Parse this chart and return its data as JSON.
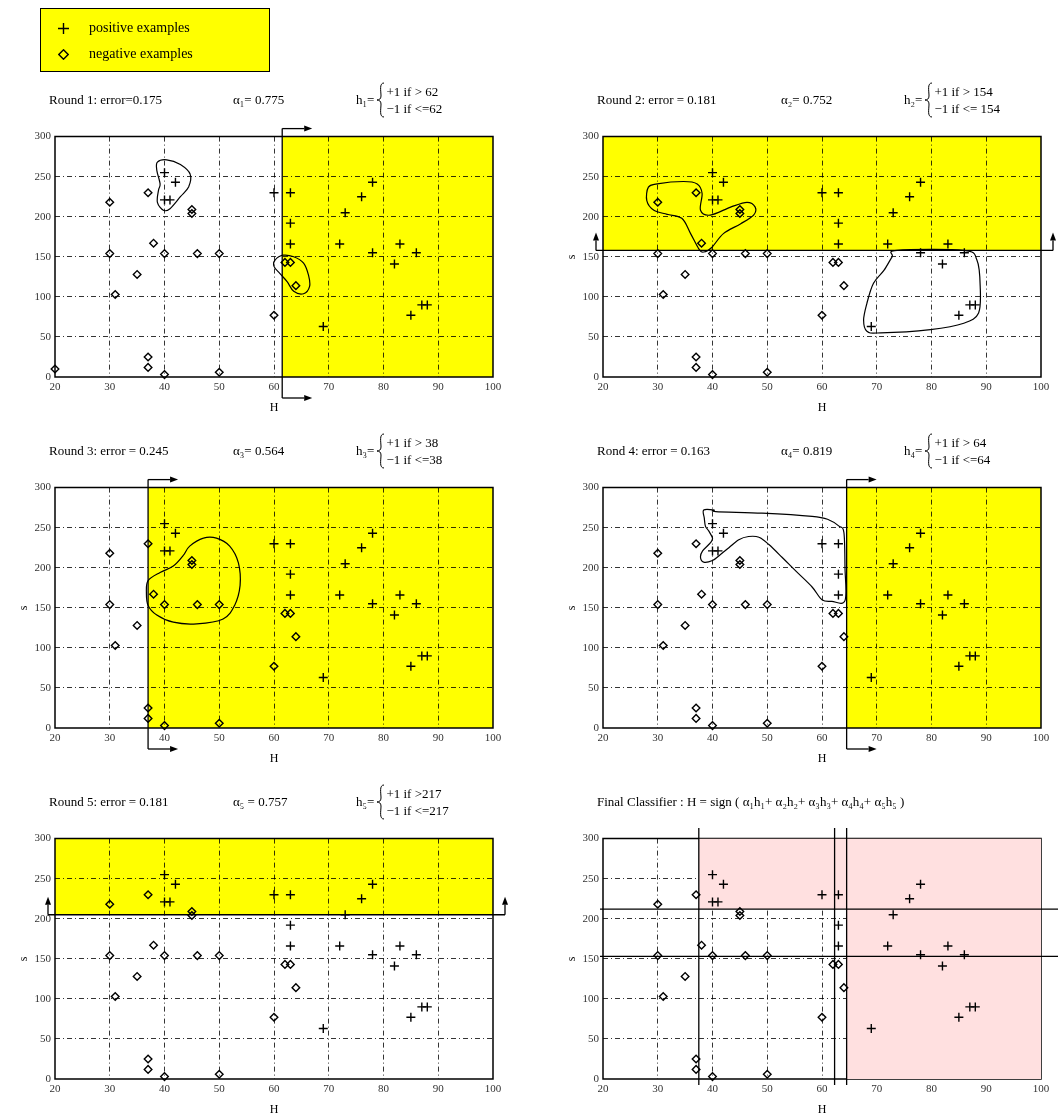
{
  "chart_data": [
    {
      "type": "scatter",
      "title": "Round 1: error=0.175",
      "xlabel": "H",
      "annotations": [
        "α₁= 0.775",
        "h₁=",
        "+1 if > 62",
        "−1 if <=62"
      ],
      "series": [
        {
          "name": "positive examples",
          "color": "#000000",
          "marker": "cross",
          "x": [
            40,
            42,
            40,
            41,
            60,
            63,
            63,
            63,
            69,
            72,
            73,
            76,
            78,
            78,
            82,
            83,
            86,
            85,
            87,
            88
          ],
          "values": [
            255,
            243,
            221,
            221,
            230,
            230,
            192,
            166,
            63,
            166,
            205,
            225,
            243,
            155,
            141,
            166,
            155,
            77,
            90,
            90
          ]
        },
        {
          "name": "negative examples",
          "color": "#000000",
          "marker": "diamond",
          "x": [
            20,
            30,
            30,
            31,
            35,
            37,
            37,
            37,
            38,
            40,
            40,
            45,
            45,
            46,
            50,
            50,
            60,
            62,
            63,
            64
          ],
          "values": [
            10,
            218,
            154,
            103,
            128,
            230,
            25,
            12,
            167,
            154,
            3,
            209,
            204,
            154,
            154,
            6,
            77,
            143,
            143,
            114
          ]
        }
      ],
      "xlim": [
        20,
        100
      ],
      "ylim": [
        0,
        300
      ],
      "xticks": [
        20,
        30,
        40,
        50,
        60,
        70,
        80,
        90,
        100
      ],
      "yticks": [
        0,
        50,
        100,
        150,
        200,
        250,
        300
      ],
      "grid": true,
      "legend": "top left",
      "bands": [
        {
          "axis": "x",
          "from": 61.5,
          "to": 100,
          "color": "#ffff00"
        }
      ],
      "ref_lines": [
        {
          "axis": "x",
          "value": 61.5,
          "color": "#000000"
        }
      ]
    },
    {
      "type": "scatter",
      "title": "Round 2: error = 0.181",
      "xlabel": "H",
      "ylabel": "s",
      "annotations": [
        "α₂= 0.752",
        "h₂=",
        "+1 if > 154",
        "−1 if <= 154"
      ],
      "series": [
        {
          "color": "#000000",
          "marker": "cross",
          "x": [
            40,
            42,
            40,
            41,
            60,
            63,
            63,
            63,
            69,
            72,
            73,
            76,
            78,
            78,
            82,
            83,
            86,
            85,
            87,
            88
          ],
          "values": [
            255,
            243,
            221,
            221,
            230,
            230,
            192,
            166,
            63,
            166,
            205,
            225,
            243,
            155,
            141,
            166,
            155,
            77,
            90,
            90
          ]
        },
        {
          "color": "#000000",
          "marker": "diamond",
          "x": [
            30,
            30,
            31,
            35,
            37,
            37,
            37,
            38,
            40,
            40,
            45,
            45,
            46,
            50,
            50,
            60,
            62,
            63,
            64
          ],
          "values": [
            218,
            154,
            103,
            128,
            230,
            25,
            12,
            167,
            154,
            3,
            209,
            204,
            154,
            154,
            6,
            77,
            143,
            143,
            114
          ]
        }
      ],
      "xlim": [
        20,
        100
      ],
      "ylim": [
        0,
        300
      ],
      "xticks": [
        20,
        30,
        40,
        50,
        60,
        70,
        80,
        90,
        100
      ],
      "yticks": [
        0,
        50,
        100,
        150,
        200,
        250,
        300
      ],
      "grid": true,
      "bands": [
        {
          "axis": "y",
          "from": 158,
          "to": 300,
          "color": "#ffff00"
        }
      ],
      "ref_lines": [
        {
          "axis": "y",
          "value": 158,
          "color": "#000000"
        }
      ]
    },
    {
      "type": "scatter",
      "title": "Round 3: error = 0.245",
      "xlabel": "H",
      "ylabel": "s",
      "annotations": [
        "α₃= 0.564",
        "h₃=",
        "+1 if > 38",
        "−1 if <=38"
      ],
      "series": [
        {
          "color": "#000000",
          "marker": "cross",
          "x": [
            40,
            42,
            40,
            41,
            60,
            63,
            63,
            63,
            69,
            72,
            73,
            76,
            78,
            78,
            82,
            83,
            86,
            85,
            87,
            88
          ],
          "values": [
            255,
            243,
            221,
            221,
            230,
            230,
            192,
            166,
            63,
            166,
            205,
            225,
            243,
            155,
            141,
            166,
            155,
            77,
            90,
            90
          ]
        },
        {
          "color": "#000000",
          "marker": "diamond",
          "x": [
            30,
            30,
            31,
            35,
            37,
            37,
            37,
            38,
            40,
            40,
            45,
            45,
            46,
            50,
            50,
            60,
            62,
            63,
            64
          ],
          "values": [
            218,
            154,
            103,
            128,
            230,
            25,
            12,
            167,
            154,
            3,
            209,
            204,
            154,
            154,
            6,
            77,
            143,
            143,
            114
          ]
        }
      ],
      "xlim": [
        20,
        100
      ],
      "ylim": [
        0,
        300
      ],
      "xticks": [
        20,
        30,
        40,
        50,
        60,
        70,
        80,
        90,
        100
      ],
      "yticks": [
        0,
        50,
        100,
        150,
        200,
        250,
        300
      ],
      "grid": true,
      "bands": [
        {
          "axis": "x",
          "from": 37,
          "to": 100,
          "color": "#ffff00"
        }
      ],
      "ref_lines": [
        {
          "axis": "x",
          "value": 37,
          "color": "#000000"
        }
      ]
    },
    {
      "type": "scatter",
      "title": "Rond 4: error = 0.163",
      "xlabel": "H",
      "ylabel": "s",
      "annotations": [
        "α₄= 0.819",
        "h₄=",
        "+1 if > 64",
        "−1 if <=64"
      ],
      "series": [
        {
          "color": "#000000",
          "marker": "cross",
          "x": [
            40,
            42,
            40,
            41,
            60,
            63,
            63,
            63,
            69,
            72,
            73,
            76,
            78,
            78,
            82,
            83,
            86,
            85,
            87,
            88
          ],
          "values": [
            255,
            243,
            221,
            221,
            230,
            230,
            192,
            166,
            63,
            166,
            205,
            225,
            243,
            155,
            141,
            166,
            155,
            77,
            90,
            90
          ]
        },
        {
          "color": "#000000",
          "marker": "diamond",
          "x": [
            30,
            30,
            31,
            35,
            37,
            37,
            37,
            38,
            40,
            40,
            45,
            45,
            46,
            50,
            50,
            60,
            62,
            63,
            64
          ],
          "values": [
            218,
            154,
            103,
            128,
            230,
            25,
            12,
            167,
            154,
            3,
            209,
            204,
            154,
            154,
            6,
            77,
            143,
            143,
            114
          ]
        }
      ],
      "xlim": [
        20,
        100
      ],
      "ylim": [
        0,
        300
      ],
      "xticks": [
        20,
        30,
        40,
        50,
        60,
        70,
        80,
        90,
        100
      ],
      "yticks": [
        0,
        50,
        100,
        150,
        200,
        250,
        300
      ],
      "grid": true,
      "bands": [
        {
          "axis": "x",
          "from": 64.5,
          "to": 100,
          "color": "#ffff00"
        }
      ],
      "ref_lines": [
        {
          "axis": "x",
          "value": 64.5,
          "color": "#000000"
        }
      ]
    },
    {
      "type": "scatter",
      "title": "Round 5: error = 0.181",
      "xlabel": "H",
      "ylabel": "s",
      "annotations": [
        "α₅ = 0.757",
        "h₅=",
        "+1 if >217",
        "−1 if <=217"
      ],
      "series": [
        {
          "color": "#000000",
          "marker": "cross",
          "x": [
            40,
            42,
            40,
            41,
            60,
            63,
            63,
            63,
            69,
            72,
            73,
            76,
            78,
            78,
            82,
            83,
            86,
            85,
            87,
            88
          ],
          "values": [
            255,
            243,
            221,
            221,
            230,
            230,
            192,
            166,
            63,
            166,
            205,
            225,
            243,
            155,
            141,
            166,
            155,
            77,
            90,
            90
          ]
        },
        {
          "color": "#000000",
          "marker": "diamond",
          "x": [
            30,
            30,
            31,
            35,
            37,
            37,
            37,
            38,
            40,
            40,
            45,
            45,
            46,
            50,
            50,
            60,
            62,
            63,
            64
          ],
          "values": [
            218,
            154,
            103,
            128,
            230,
            25,
            12,
            167,
            154,
            3,
            209,
            204,
            154,
            154,
            6,
            77,
            143,
            143,
            114
          ]
        }
      ],
      "xlim": [
        20,
        100
      ],
      "ylim": [
        0,
        300
      ],
      "xticks": [
        20,
        30,
        40,
        50,
        60,
        70,
        80,
        90,
        100
      ],
      "yticks": [
        0,
        50,
        100,
        150,
        200,
        250,
        300
      ],
      "grid": true,
      "bands": [
        {
          "axis": "y",
          "from": 205,
          "to": 300,
          "color": "#ffff00"
        }
      ],
      "ref_lines": [
        {
          "axis": "y",
          "value": 205,
          "color": "#000000"
        }
      ]
    },
    {
      "type": "scatter",
      "title": "Final Classifier : H = sign ( α₁h₁+ α₂h₂+ α₃h₃+ α₄h₄+ α₅h₅ )",
      "xlabel": "H",
      "ylabel": "s",
      "series": [
        {
          "type": "area",
          "color": "#ffe0e0",
          "x": [
            37.5,
            50,
            64.5,
            64.5,
            80,
            100
          ],
          "values": [
            null,
            null,
            null,
            null,
            null,
            null
          ],
          "lower": [
            212,
            212,
            212,
            0,
            0,
            0
          ],
          "upper": [
            300,
            300,
            300,
            300,
            300,
            300
          ]
        },
        {
          "color": "#000000",
          "marker": "cross",
          "x": [
            40,
            42,
            40,
            41,
            60,
            63,
            63,
            63,
            69,
            72,
            73,
            76,
            78,
            78,
            82,
            83,
            86,
            85,
            87,
            88
          ],
          "values": [
            255,
            243,
            221,
            221,
            230,
            230,
            192,
            166,
            63,
            166,
            205,
            225,
            243,
            155,
            141,
            166,
            155,
            77,
            90,
            90
          ]
        },
        {
          "color": "#000000",
          "marker": "diamond",
          "x": [
            30,
            30,
            31,
            35,
            37,
            37,
            37,
            38,
            40,
            40,
            45,
            45,
            46,
            50,
            50,
            60,
            62,
            63,
            64
          ],
          "values": [
            218,
            154,
            103,
            128,
            230,
            25,
            12,
            167,
            154,
            3,
            209,
            204,
            154,
            154,
            6,
            77,
            143,
            143,
            114
          ]
        }
      ],
      "xlim": [
        20,
        100
      ],
      "ylim": [
        0,
        300
      ],
      "xticks": [
        20,
        30,
        40,
        50,
        60,
        70,
        80,
        90,
        100
      ],
      "yticks": [
        0,
        50,
        100,
        150,
        200,
        250,
        300
      ],
      "grid": true,
      "ref_lines": [
        {
          "axis": "x",
          "value": 37.5,
          "color": "#000000"
        },
        {
          "axis": "x",
          "value": 62.3,
          "color": "#000000"
        },
        {
          "axis": "x",
          "value": 64.5,
          "color": "#000000"
        },
        {
          "axis": "y",
          "value": 212,
          "color": "#000000"
        },
        {
          "axis": "y",
          "value": 153,
          "color": "#000000"
        }
      ]
    }
  ]
}
